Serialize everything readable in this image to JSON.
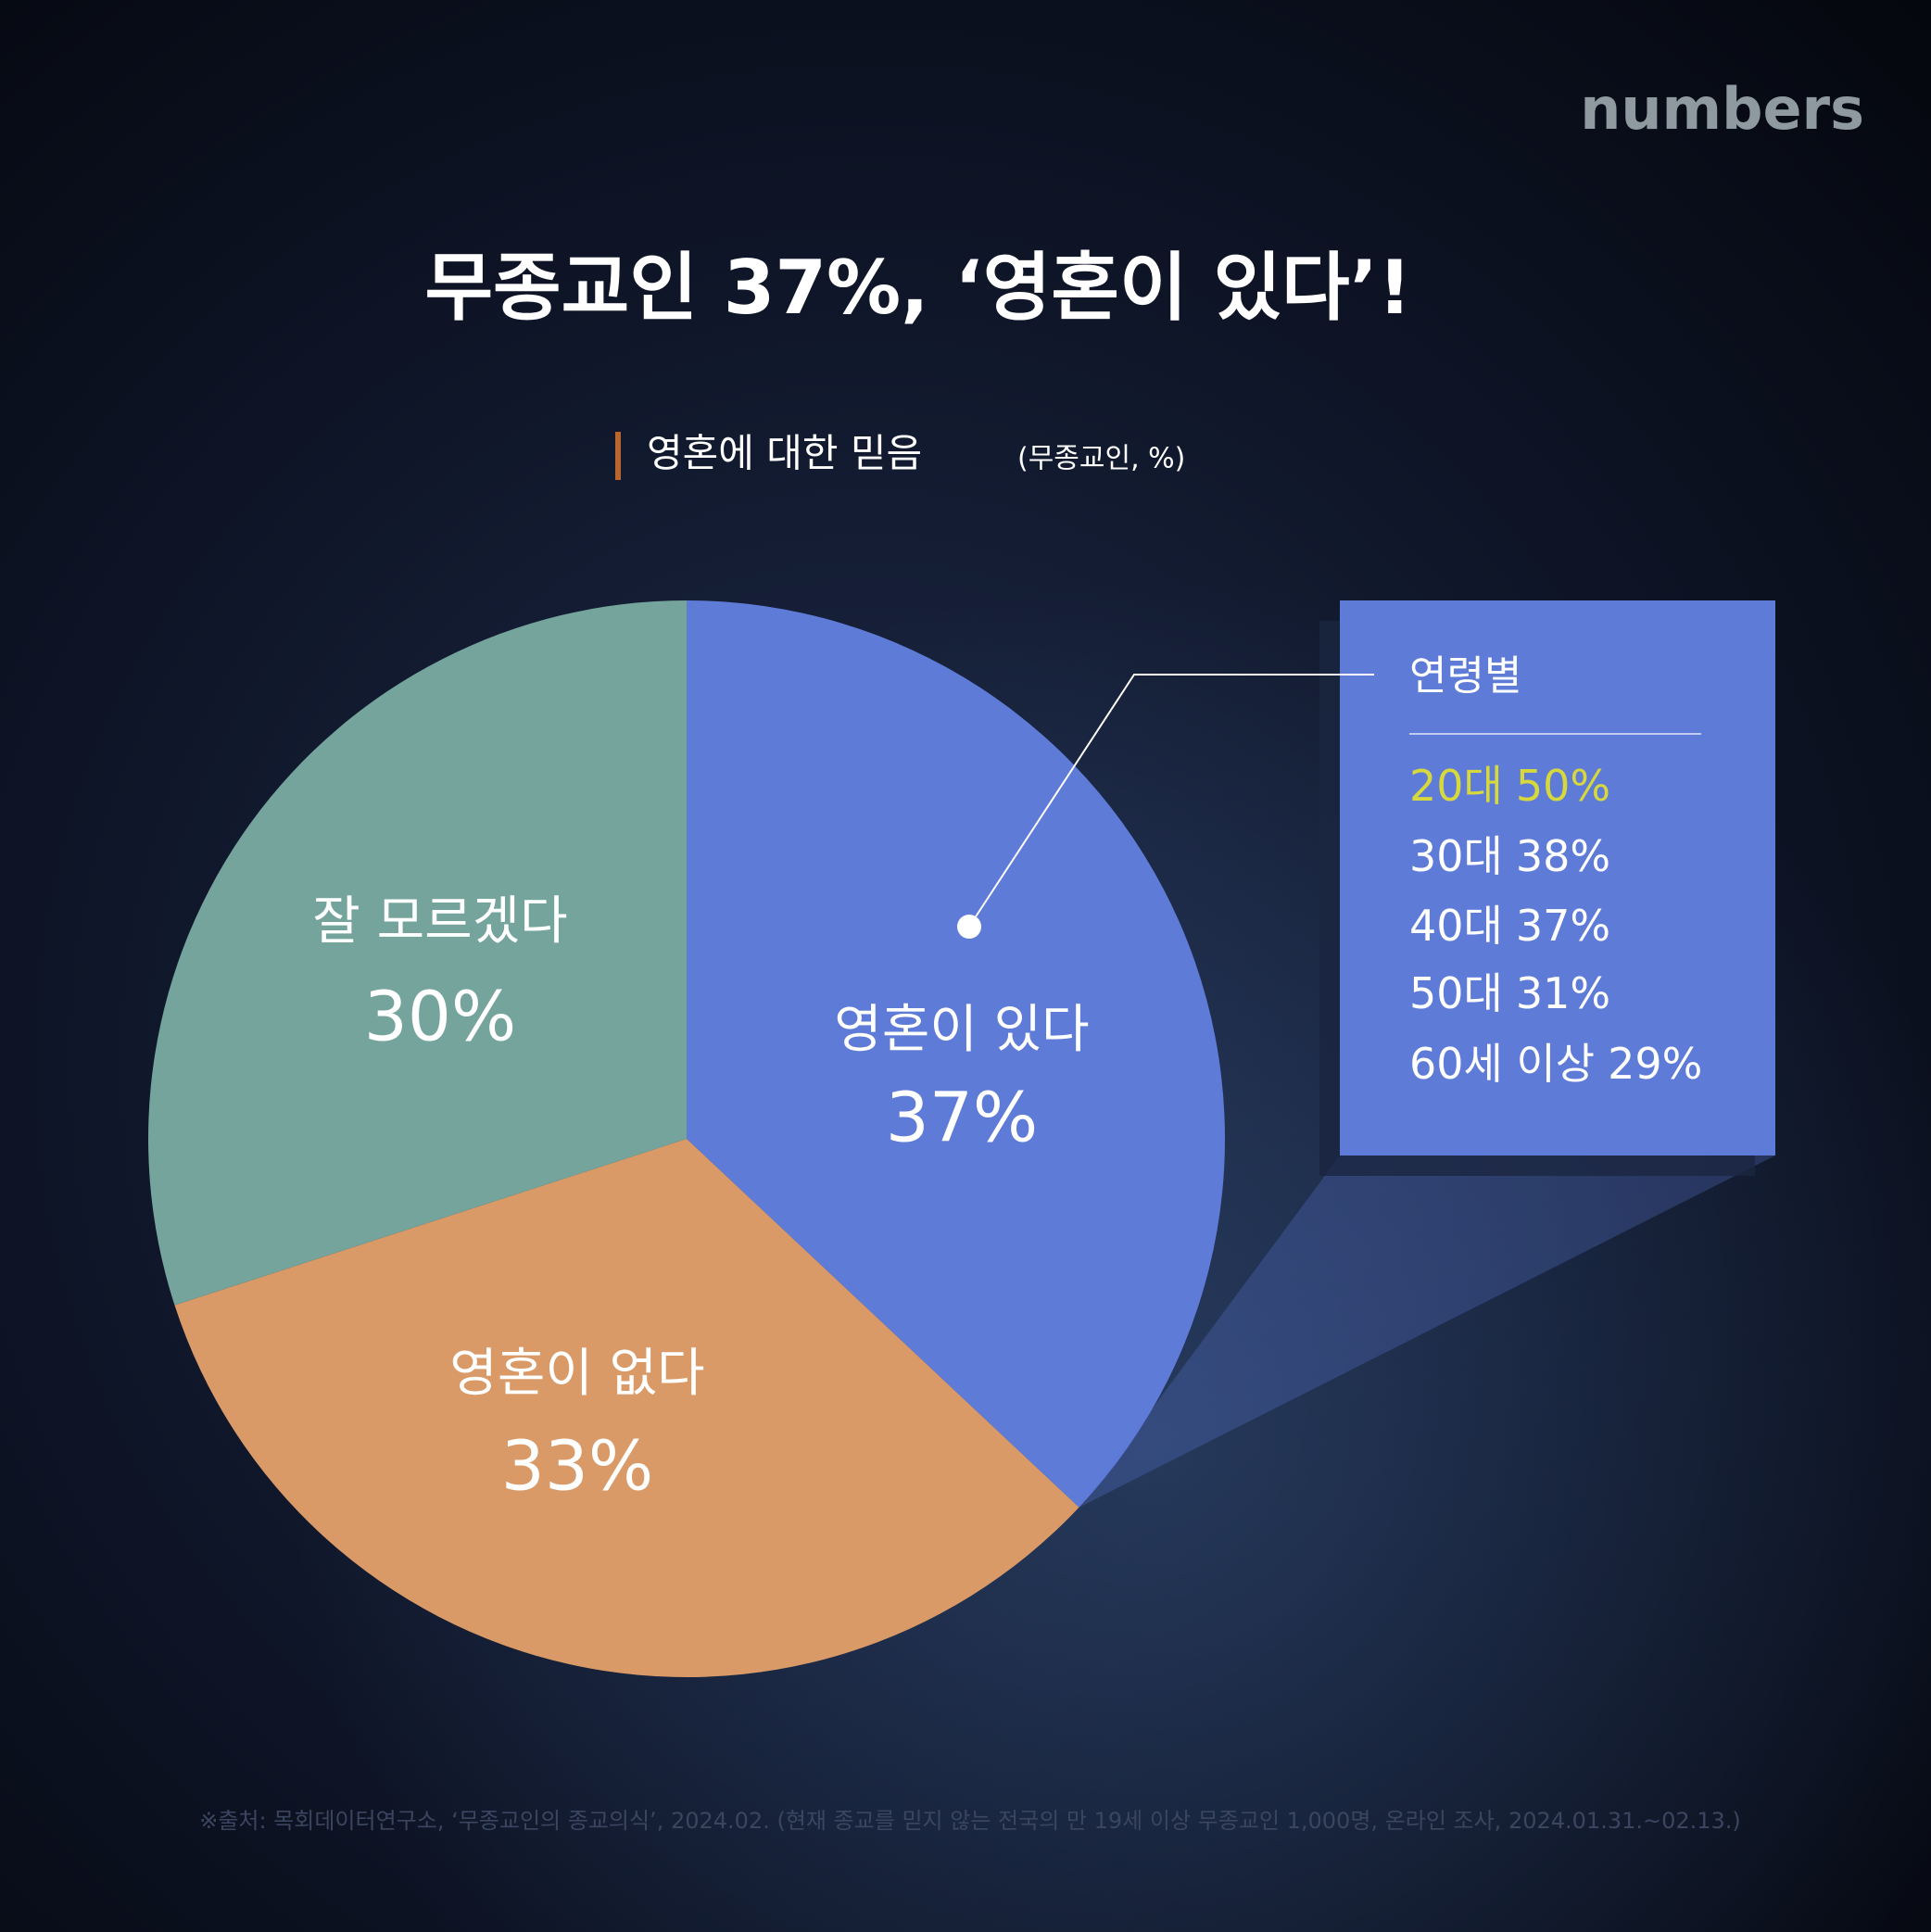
{
  "brand": "numbers",
  "chart_data": {
    "type": "pie",
    "title": "무종교인 37%, ‘영혼이 있다’!",
    "subtitle": "영혼에 대한 믿음",
    "unit_note": "(무종교인, %)",
    "categories": [
      "영혼이 있다",
      "영혼이 없다",
      "잘 모르겠다"
    ],
    "values": [
      37,
      33,
      30
    ],
    "value_labels": [
      "37%",
      "33%",
      "30%"
    ],
    "colors": [
      "#5f7bd8",
      "#d99a68",
      "#74a49c"
    ],
    "callout": {
      "title": "연령별",
      "categories": [
        "20대",
        "30대",
        "40대",
        "50대",
        "60세 이상"
      ],
      "values": [
        50,
        38,
        37,
        31,
        29
      ],
      "value_labels": [
        "50%",
        "38%",
        "37%",
        "31%",
        "29%"
      ],
      "highlight_color": "#d6d83c"
    },
    "source": "※출처: 목회데이터연구소, ‘무종교인의 종교의식’, 2024.02. (현재 종교를 믿지 않는 전국의 만 19세 이상 무종교인 1,000명, 온라인 조사, 2024.01.31.~02.13.)"
  }
}
